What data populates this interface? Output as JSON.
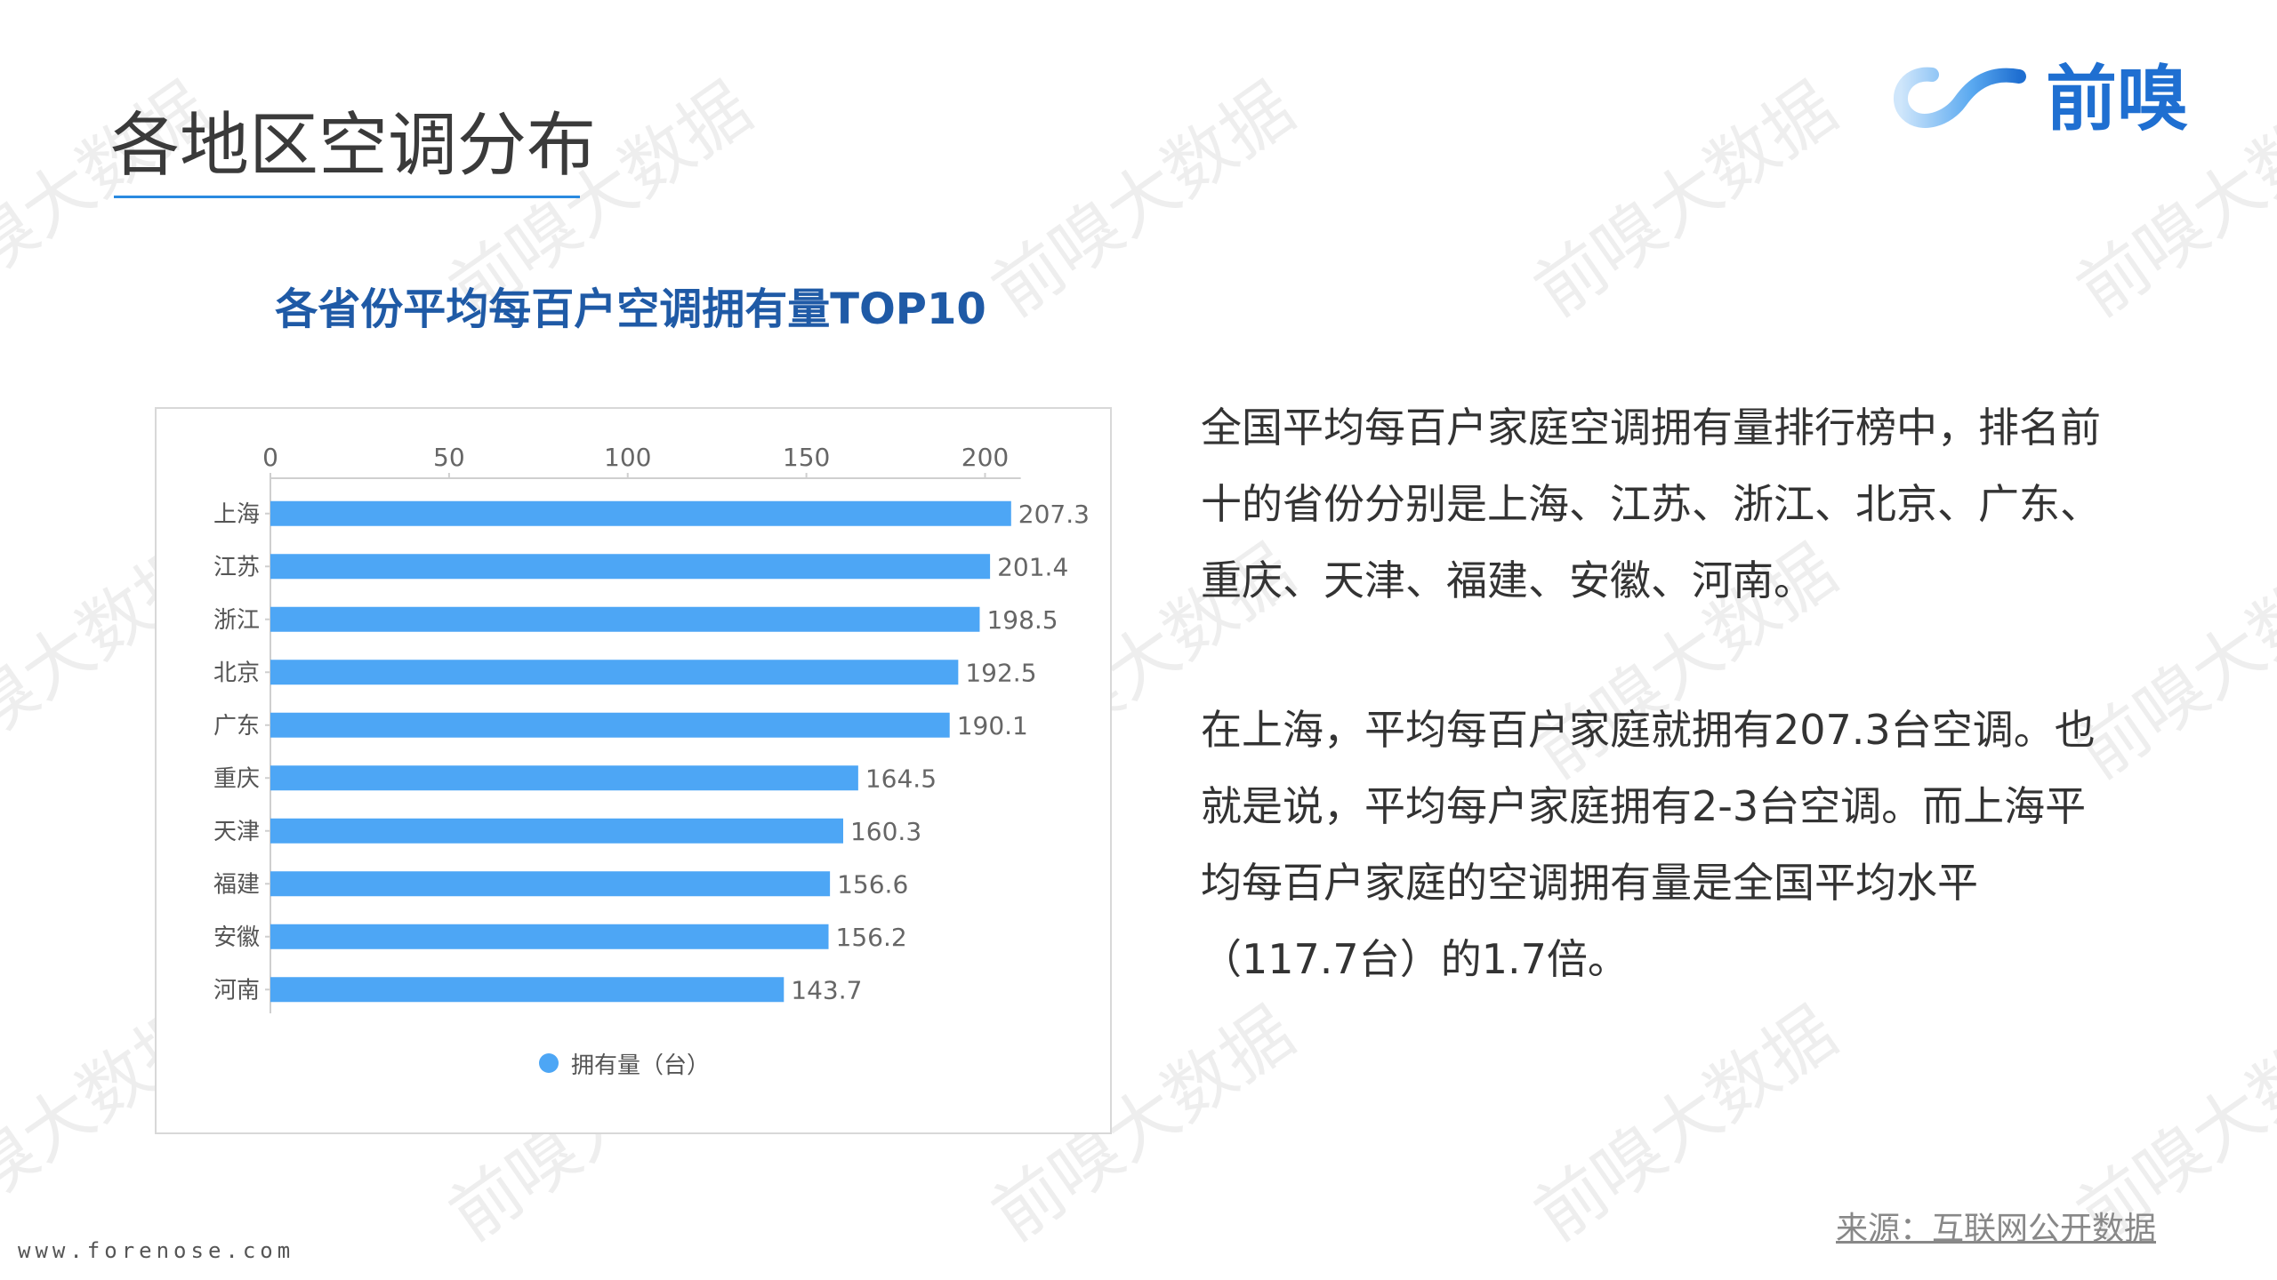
{
  "slide": {
    "title": "各地区空调分布",
    "logo_text": "前嗅",
    "chart_heading": "各省份平均每百户空调拥有量TOP10",
    "paragraph1": "全国平均每百户家庭空调拥有量排行榜中，排名前十的省份分别是上海、江苏、浙江、北京、广东、重庆、天津、福建、安徽、河南。",
    "paragraph2": "在上海，平均每百户家庭就拥有207.3台空调。也就是说，平均每户家庭拥有2-3台空调。而上海平均每百户家庭的空调拥有量是全国平均水平（117.7台）的1.7倍。",
    "source": "来源：互联网公开数据",
    "website": "www.forenose.com",
    "watermark": "前嗅大数据"
  },
  "colors": {
    "bar": "#4da6f5",
    "title_underline": "#2a8ae0",
    "heading": "#1f5aa6",
    "logo": "#1f6fd1"
  },
  "chart_data": {
    "type": "bar",
    "orientation": "horizontal",
    "categories": [
      "上海",
      "江苏",
      "浙江",
      "北京",
      "广东",
      "重庆",
      "天津",
      "福建",
      "安徽",
      "河南"
    ],
    "series": [
      {
        "name": "拥有量（台）",
        "values": [
          207.3,
          201.4,
          198.5,
          192.5,
          190.1,
          164.5,
          160.3,
          156.6,
          156.2,
          143.7
        ]
      }
    ],
    "x_ticks": [
      0,
      50,
      100,
      150,
      200
    ],
    "xlim": [
      0,
      230
    ],
    "grid": false,
    "data_labels": true,
    "legend_position": "bottom-center",
    "title": "各省份平均每百户空调拥有量TOP10"
  }
}
